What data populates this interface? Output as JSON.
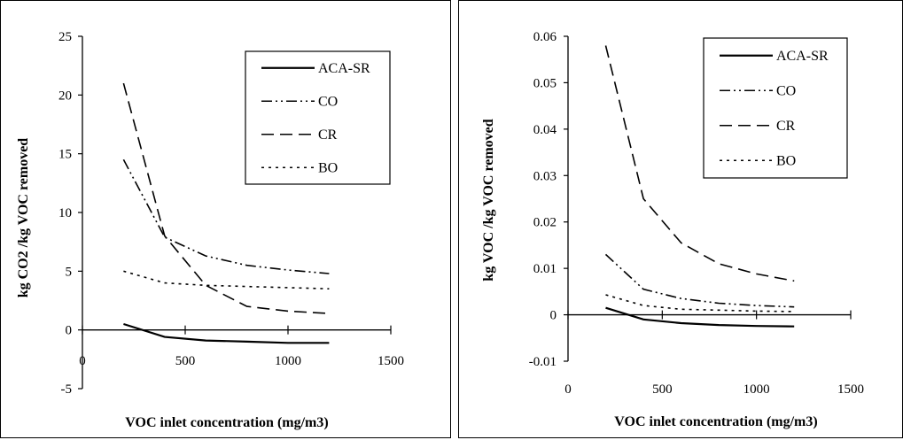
{
  "chart_data": [
    {
      "type": "line",
      "xlabel": "VOC inlet concentration (mg/m3)",
      "ylabel": "kg CO2 /kg VOC removed",
      "xlim": [
        0,
        1500
      ],
      "ylim": [
        -5,
        25
      ],
      "x_ticks": [
        "0",
        "500",
        "1000",
        "1500"
      ],
      "y_ticks": [
        "-5",
        "0",
        "5",
        "10",
        "15",
        "20",
        "25"
      ],
      "grid": false,
      "legend_position": "top-right",
      "x": [
        200,
        400,
        600,
        800,
        1000,
        1200
      ],
      "series": [
        {
          "name": "ACA-SR",
          "style": "solid",
          "values": [
            0.5,
            -0.6,
            -0.9,
            -1.0,
            -1.1,
            -1.1
          ]
        },
        {
          "name": "CO",
          "style": "dash-dot-dot",
          "values": [
            14.5,
            7.9,
            6.3,
            5.5,
            5.1,
            4.8
          ]
        },
        {
          "name": "CR",
          "style": "dashed",
          "values": [
            21.0,
            8.0,
            3.8,
            2.0,
            1.6,
            1.4
          ]
        },
        {
          "name": "BO",
          "style": "dotted",
          "values": [
            5.0,
            4.0,
            3.8,
            3.7,
            3.6,
            3.5
          ]
        }
      ]
    },
    {
      "type": "line",
      "xlabel": "VOC inlet concentration (mg/m3)",
      "ylabel": "kg VOC /kg VOC removed",
      "xlim": [
        0,
        1500
      ],
      "ylim": [
        -0.01,
        0.06
      ],
      "x_ticks": [
        "0",
        "500",
        "1000",
        "1500"
      ],
      "y_ticks": [
        "-0.01",
        "0",
        "0.01",
        "0.02",
        "0.03",
        "0.04",
        "0.05",
        "0.06"
      ],
      "grid": false,
      "legend_position": "top-right",
      "x": [
        200,
        400,
        600,
        800,
        1000,
        1200
      ],
      "series": [
        {
          "name": "ACA-SR",
          "style": "solid",
          "values": [
            0.0015,
            -0.001,
            -0.0018,
            -0.0022,
            -0.0024,
            -0.0025
          ]
        },
        {
          "name": "CO",
          "style": "dash-dot-dot",
          "values": [
            0.013,
            0.0055,
            0.0035,
            0.0025,
            0.002,
            0.0017
          ]
        },
        {
          "name": "CR",
          "style": "dashed",
          "values": [
            0.058,
            0.025,
            0.0155,
            0.011,
            0.0088,
            0.0073
          ]
        },
        {
          "name": "BO",
          "style": "dotted",
          "values": [
            0.0043,
            0.002,
            0.0012,
            0.001,
            0.0008,
            0.0007
          ]
        }
      ]
    }
  ],
  "colors": {
    "line": "#000000",
    "background": "#ffffff"
  }
}
